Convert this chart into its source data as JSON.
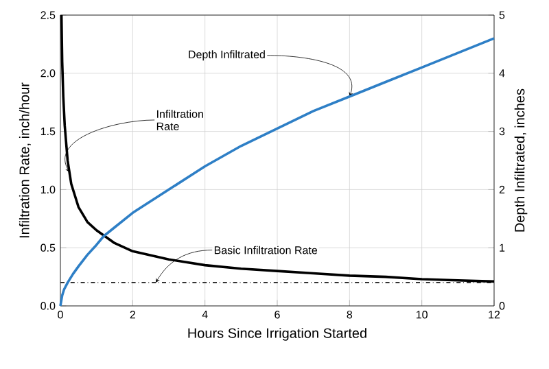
{
  "chart_data": {
    "type": "line",
    "xlabel": "Hours Since Irrigation Started",
    "ylabel": "Infiltration Rate, inch/hour",
    "y2label": "Depth Infiltrated, inches",
    "xlim": [
      0,
      12
    ],
    "xticks": [
      0,
      2,
      4,
      6,
      8,
      10,
      12
    ],
    "ylim": [
      0,
      2.5
    ],
    "yticks": [
      {
        "value": 0,
        "label": "0.0"
      },
      0.5,
      {
        "value": 1,
        "label": "1.0"
      },
      1.5,
      {
        "value": 2,
        "label": "2.0"
      },
      2.5
    ],
    "y2lim": [
      0,
      5
    ],
    "y2ticks": [
      0,
      1,
      2,
      3,
      4,
      5
    ],
    "grid": true,
    "marker": "none",
    "line_style": "solid",
    "series": [
      {
        "color": "#000000",
        "x": [
          0.03,
          0.05,
          0.08,
          0.12,
          0.2,
          0.3,
          0.5,
          0.75,
          1,
          1.5,
          2,
          3,
          4,
          5,
          6,
          7,
          8,
          9,
          10,
          11,
          12
        ],
        "values": [
          2.5,
          2.1,
          1.8,
          1.55,
          1.25,
          1.05,
          0.85,
          0.72,
          0.65,
          0.54,
          0.47,
          0.4,
          0.35,
          0.32,
          0.3,
          0.28,
          0.26,
          0.25,
          0.23,
          0.22,
          0.21
        ]
      },
      {
        "color": "#2e7fc6",
        "axis": "y2",
        "x": [
          0,
          0.05,
          0.1,
          0.2,
          0.35,
          0.5,
          0.75,
          1,
          1.2,
          1.5,
          2,
          3,
          4,
          5,
          6,
          7,
          8,
          9,
          10,
          11,
          12
        ],
        "values": [
          0,
          0.18,
          0.28,
          0.4,
          0.55,
          0.68,
          0.88,
          1.05,
          1.2,
          1.35,
          1.6,
          2.0,
          2.4,
          2.75,
          3.05,
          3.35,
          3.6,
          3.85,
          4.1,
          4.35,
          4.6
        ]
      }
    ],
    "ref_lines": [
      {
        "axis": "y",
        "value": 0.2,
        "label": "Basic Infiltration Rate",
        "color": "#333333",
        "line_style": "dashdot"
      }
    ],
    "annotations": [
      {
        "text": "Infiltration Rate",
        "x": 0.25,
        "y": 1.15
      },
      {
        "text": "Depth Infiltrated",
        "x": 8,
        "y": 1.8
      }
    ]
  }
}
